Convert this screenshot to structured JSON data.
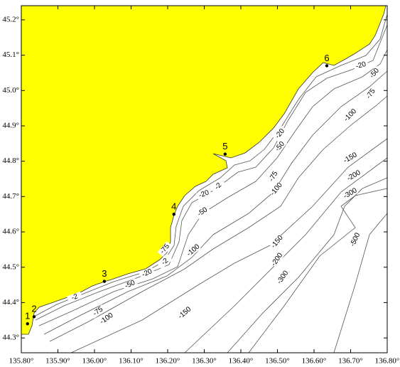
{
  "map": {
    "xlim": [
      135.8,
      136.8
    ],
    "ylim": [
      44.258,
      45.24
    ],
    "xticks": [
      {
        "value": 135.8,
        "label": "135.80°"
      },
      {
        "value": 135.9,
        "label": "135.90°"
      },
      {
        "value": 136.0,
        "label": "136.00°"
      },
      {
        "value": 136.1,
        "label": "136.10°"
      },
      {
        "value": 136.2,
        "label": "136.20°"
      },
      {
        "value": 136.3,
        "label": "136.30°"
      },
      {
        "value": 136.4,
        "label": "136.40°"
      },
      {
        "value": 136.5,
        "label": "136.50°"
      },
      {
        "value": 136.6,
        "label": "136.60°"
      },
      {
        "value": 136.7,
        "label": "136.70°"
      },
      {
        "value": 136.8,
        "label": "136.80°"
      }
    ],
    "yticks": [
      {
        "value": 44.3,
        "label": "44.3°"
      },
      {
        "value": 44.4,
        "label": "44.4°"
      },
      {
        "value": 44.5,
        "label": "44.5°"
      },
      {
        "value": 44.6,
        "label": "44.6°"
      },
      {
        "value": 44.7,
        "label": "44.7°"
      },
      {
        "value": 44.8,
        "label": "44.8°"
      },
      {
        "value": 44.9,
        "label": "44.9°"
      },
      {
        "value": 45.0,
        "label": "45.0°"
      },
      {
        "value": 45.1,
        "label": "45.1°"
      },
      {
        "value": 45.2,
        "label": "45.2°"
      }
    ],
    "stations": [
      {
        "label": "1",
        "lon": 135.817,
        "lat": 44.34
      },
      {
        "label": "2",
        "lon": 135.835,
        "lat": 44.36
      },
      {
        "label": "3",
        "lon": 136.027,
        "lat": 44.46
      },
      {
        "label": "4",
        "lon": 136.217,
        "lat": 44.65
      },
      {
        "label": "5",
        "lon": 136.357,
        "lat": 44.82
      },
      {
        "label": "6",
        "lon": 136.635,
        "lat": 45.07
      }
    ],
    "contour_labels": [
      -2,
      -20,
      -50,
      -75,
      -100,
      -150,
      -2,
      -75,
      -100,
      -20,
      -2,
      -50,
      -75,
      -100,
      -150,
      -200,
      -300,
      -20,
      -50,
      -20,
      -50,
      -75,
      -100,
      -150,
      -200,
      -300,
      -500
    ]
  }
}
